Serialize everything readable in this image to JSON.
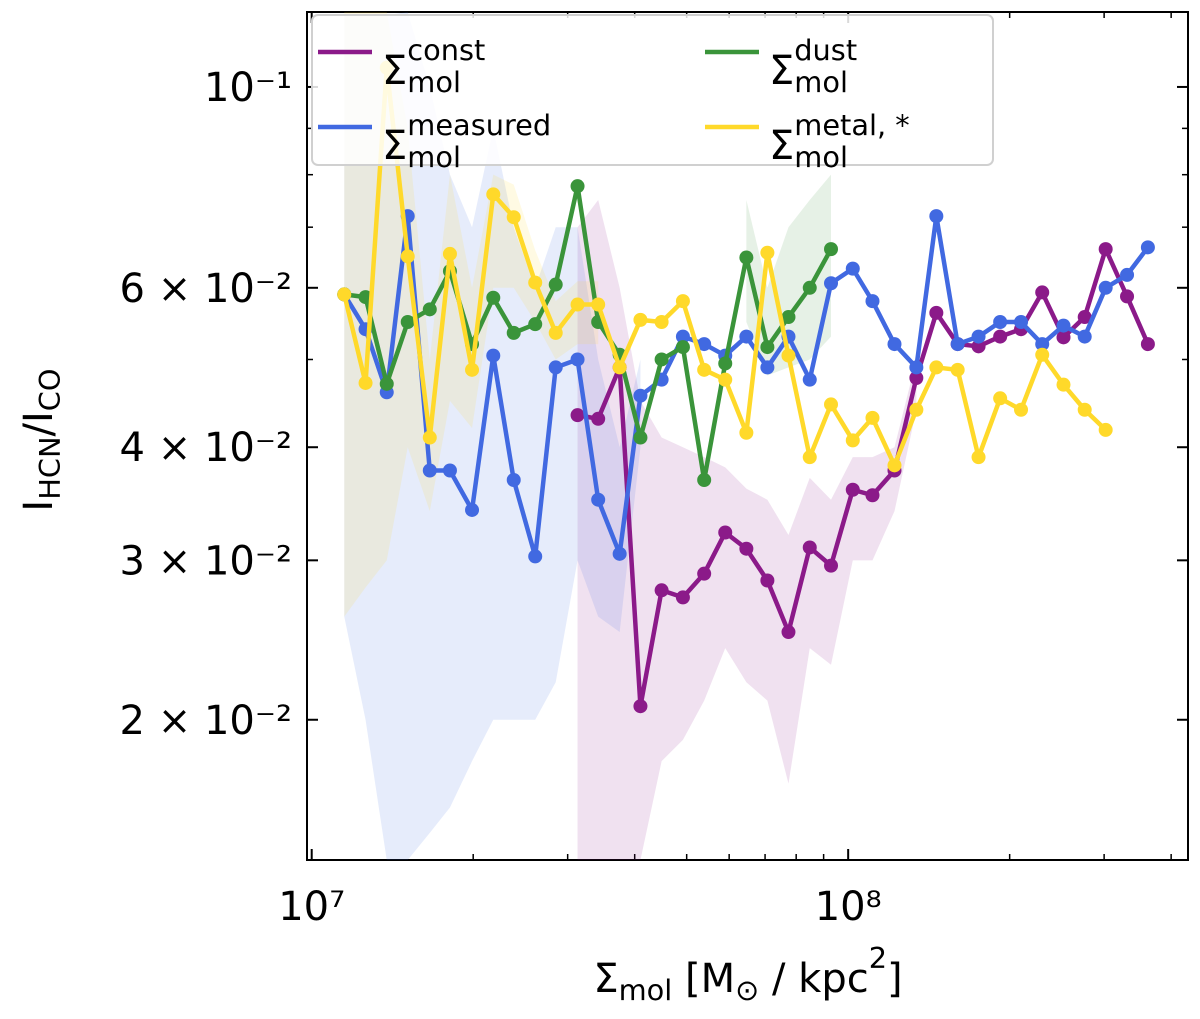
{
  "chart_data": {
    "type": "line",
    "xlabel": "Σ_{mol} [M_{⊙} / kpc^{2}]",
    "ylabel": "I_{HCN}/I_{CO}",
    "xscale": "log",
    "yscale": "log",
    "xlim": [
      9800000,
      430000000
    ],
    "ylim": [
      0.014,
      0.121
    ],
    "xticks": [
      {
        "value": 10000000,
        "label": "10⁷"
      },
      {
        "value": 100000000,
        "label": "10⁸"
      }
    ],
    "xminor_ticks": [
      20000000,
      30000000,
      40000000,
      50000000,
      60000000,
      70000000,
      80000000,
      90000000,
      200000000,
      300000000,
      400000000
    ],
    "yticks": [
      {
        "value": 0.02,
        "label": "2 × 10⁻²"
      },
      {
        "value": 0.03,
        "label": "3 × 10⁻²"
      },
      {
        "value": 0.04,
        "label": "4 × 10⁻²"
      },
      {
        "value": 0.06,
        "label": "6 × 10⁻²"
      },
      {
        "value": 0.1,
        "label": "10⁻¹"
      }
    ],
    "yminor_ticks": [
      0.05,
      0.07,
      0.08,
      0.09
    ],
    "legend": "upper left",
    "x": [
      11500000,
      12600000,
      13800000,
      15100000,
      16600000,
      18100000,
      19900000,
      21800000,
      23800000,
      26100000,
      28500000,
      31300000,
      34200000,
      37500000,
      41000000,
      44900000,
      49200000,
      53900000,
      59000000,
      64600000,
      70700000,
      77400000,
      84800000,
      92900000,
      102000000,
      111000000,
      122000000,
      134000000,
      146000000,
      160000000,
      175000000,
      192000000,
      210000000,
      230000000,
      252000000,
      276000000,
      302000000,
      331000000,
      362000000
    ],
    "series": [
      {
        "name": "Σ_{mol}^{const}",
        "color": "#8b1a89",
        "values": [
          null,
          null,
          null,
          null,
          null,
          null,
          null,
          null,
          null,
          null,
          null,
          0.0434,
          0.043,
          0.049,
          0.0207,
          0.0278,
          0.0273,
          0.029,
          0.0322,
          0.0309,
          0.0285,
          0.025,
          0.031,
          0.0296,
          0.0359,
          0.0354,
          0.0377,
          0.0477,
          0.0563,
          0.052,
          0.0517,
          0.053,
          0.054,
          0.0593,
          0.0529,
          0.0557,
          0.0662,
          0.0587,
          0.052
        ],
        "lower": [
          null,
          null,
          null,
          null,
          null,
          null,
          null,
          null,
          null,
          null,
          null,
          0.014,
          0.014,
          0.014,
          0.014,
          0.018,
          0.019,
          0.021,
          0.024,
          0.022,
          0.021,
          0.017,
          0.024,
          0.023,
          0.03,
          0.03,
          0.034,
          0.044,
          null,
          null,
          null,
          null,
          null,
          null,
          null,
          null,
          null,
          null,
          null
        ],
        "upper": [
          null,
          null,
          null,
          null,
          null,
          null,
          null,
          null,
          null,
          null,
          null,
          0.07,
          0.075,
          0.06,
          0.045,
          0.041,
          0.04,
          0.039,
          0.038,
          0.036,
          0.035,
          0.032,
          0.037,
          0.035,
          0.039,
          0.039,
          0.04,
          0.05,
          null,
          null,
          null,
          null,
          null,
          null,
          null,
          null,
          null,
          null,
          null
        ]
      },
      {
        "name": "Σ_{mol}^{measured}",
        "color": "#4169e1",
        "values": [
          0.059,
          0.054,
          0.046,
          0.072,
          0.0377,
          0.0377,
          0.0341,
          0.0505,
          0.0368,
          0.0303,
          0.049,
          0.05,
          0.035,
          0.0305,
          0.0456,
          0.0475,
          0.053,
          0.052,
          0.0505,
          0.053,
          0.049,
          0.053,
          0.0475,
          0.0607,
          0.063,
          0.058,
          0.052,
          0.049,
          0.072,
          0.052,
          0.053,
          0.055,
          0.055,
          0.052,
          0.0545,
          0.053,
          0.06,
          0.062,
          0.0665
        ],
        "lower": [
          0.026,
          0.02,
          0.014,
          0.014,
          0.015,
          0.016,
          0.018,
          0.02,
          0.02,
          0.02,
          0.022,
          0.03,
          0.026,
          0.025,
          0.04,
          null,
          null,
          null,
          null,
          null,
          null,
          null,
          null,
          null,
          null,
          null,
          null,
          null,
          null,
          null,
          null,
          null,
          null,
          null,
          null,
          null,
          null,
          null,
          null
        ],
        "upper": [
          0.12,
          0.12,
          0.12,
          0.121,
          0.1,
          0.08,
          0.07,
          0.09,
          0.07,
          0.06,
          0.07,
          0.07,
          0.05,
          0.04,
          0.05,
          null,
          null,
          null,
          null,
          null,
          null,
          null,
          null,
          null,
          null,
          null,
          null,
          null,
          null,
          null,
          null,
          null,
          null,
          null,
          null,
          null,
          null,
          null,
          null
        ]
      },
      {
        "name": "Σ_{mol}^{dust}",
        "color": "#3a943a",
        "values": [
          0.059,
          0.0586,
          0.047,
          0.055,
          0.0568,
          0.0626,
          0.052,
          0.0585,
          0.0535,
          0.0547,
          0.0605,
          0.0777,
          0.055,
          0.0506,
          0.041,
          0.05,
          0.0516,
          0.0368,
          0.0495,
          0.0648,
          0.0516,
          0.0557,
          0.06,
          0.0662,
          null,
          null,
          null,
          null,
          null,
          null,
          null,
          null,
          null,
          null,
          null,
          null,
          null,
          null,
          null
        ],
        "lower": [
          null,
          null,
          null,
          null,
          null,
          null,
          null,
          null,
          null,
          null,
          null,
          null,
          null,
          null,
          null,
          null,
          null,
          null,
          null,
          0.055,
          0.048,
          0.049,
          0.05,
          0.053,
          null,
          null,
          null,
          null,
          null,
          null,
          null,
          null,
          null,
          null,
          null,
          null,
          null,
          null,
          null
        ],
        "upper": [
          null,
          null,
          null,
          null,
          null,
          null,
          null,
          null,
          null,
          null,
          null,
          null,
          null,
          null,
          null,
          null,
          null,
          null,
          null,
          0.075,
          0.06,
          0.07,
          0.075,
          0.08,
          null,
          null,
          null,
          null,
          null,
          null,
          null,
          null,
          null,
          null,
          null,
          null,
          null,
          null,
          null
        ]
      },
      {
        "name": "Σ_{mol}^{metal, *}",
        "color": "#ffd92a",
        "values": [
          0.059,
          0.0471,
          0.105,
          0.065,
          0.041,
          0.0654,
          0.0487,
          0.0761,
          0.0718,
          0.0608,
          0.0535,
          0.0575,
          0.0575,
          0.049,
          0.0553,
          0.055,
          0.058,
          0.0487,
          0.0475,
          0.0415,
          0.0656,
          0.0505,
          0.039,
          0.0446,
          0.0407,
          0.0431,
          0.0382,
          0.044,
          0.049,
          0.0487,
          0.039,
          0.0453,
          0.044,
          0.0506,
          0.0469,
          0.044,
          0.0418,
          null,
          null
        ],
        "lower": [
          0.026,
          0.028,
          0.03,
          0.04,
          0.034,
          0.045,
          0.042,
          0.06,
          0.06,
          0.055,
          0.05,
          0.052,
          0.052,
          null,
          null,
          null,
          null,
          null,
          null,
          null,
          null,
          null,
          null,
          null,
          null,
          null,
          null,
          null,
          null,
          null,
          null,
          null,
          null,
          null,
          null,
          null,
          null,
          null,
          null
        ],
        "upper": [
          0.121,
          0.121,
          0.121,
          0.09,
          0.05,
          0.08,
          0.06,
          0.08,
          0.078,
          0.066,
          0.058,
          0.061,
          0.061,
          null,
          null,
          null,
          null,
          null,
          null,
          null,
          null,
          null,
          null,
          null,
          null,
          null,
          null,
          null,
          null,
          null,
          null,
          null,
          null,
          null,
          null,
          null,
          null,
          null,
          null
        ]
      }
    ]
  }
}
